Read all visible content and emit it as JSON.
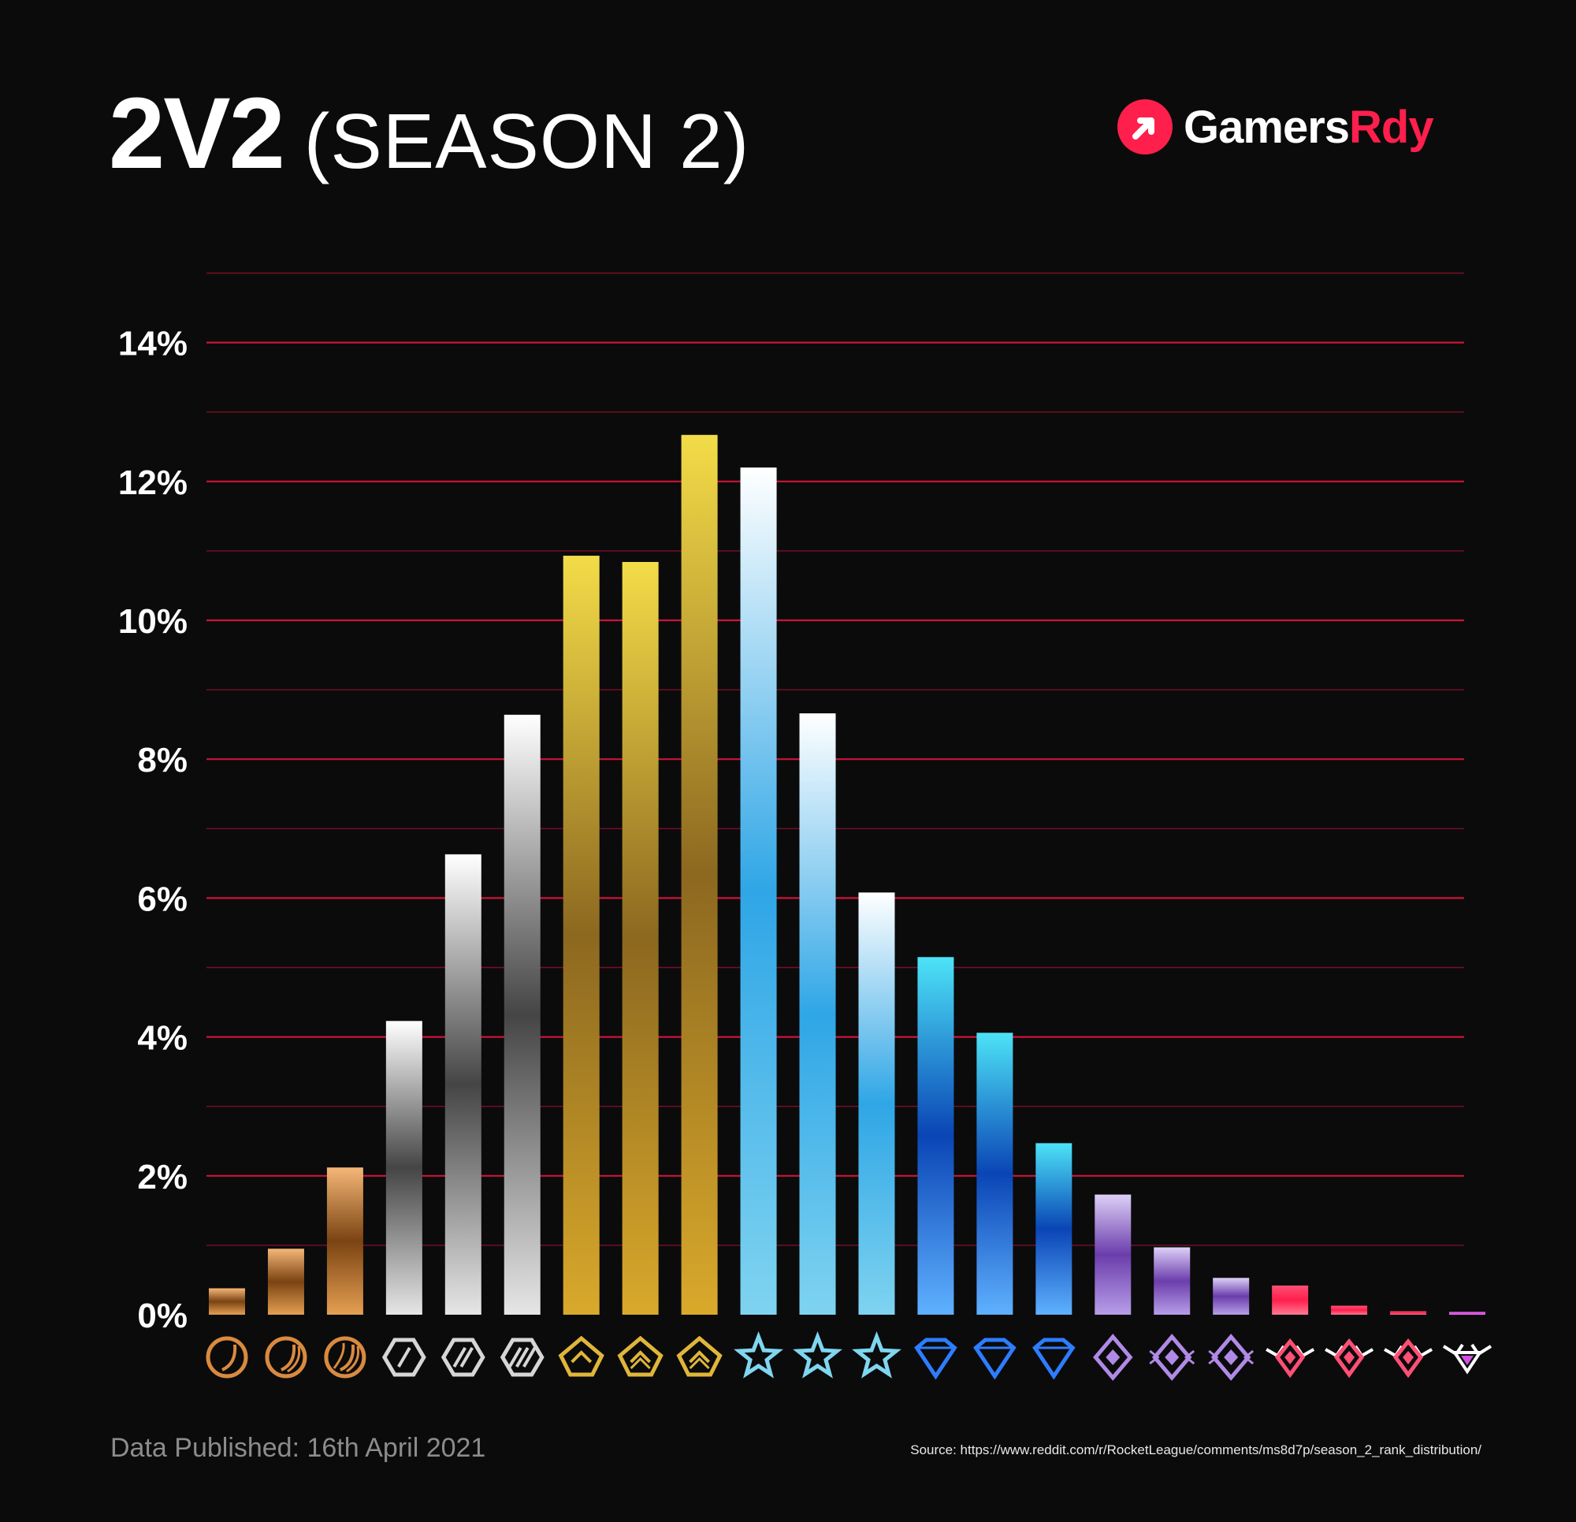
{
  "header": {
    "title_main": "2V2",
    "title_sub": "(SEASON 2)"
  },
  "brand": {
    "name_white": "Gamers",
    "name_red": "Rdy",
    "color": "#ff1f4c"
  },
  "footer": {
    "published": "Data Published: 16th April 2021",
    "source": "Source: https://www.reddit.com/r/RocketLeague/comments/ms8d7p/season_2_rank_distribution/"
  },
  "chart_data": {
    "type": "bar",
    "title": "2V2 (SEASON 2)",
    "xlabel": "",
    "ylabel": "",
    "ylim": [
      0,
      15
    ],
    "yticks": [
      0,
      2,
      4,
      6,
      8,
      10,
      12,
      14
    ],
    "ytick_labels": [
      "0%",
      "2%",
      "4%",
      "6%",
      "8%",
      "10%",
      "12%",
      "14%"
    ],
    "grid": true,
    "grid_color": "#d8143a",
    "categories_icons": [
      "bronze-1-icon",
      "bronze-2-icon",
      "bronze-3-icon",
      "silver-1-icon",
      "silver-2-icon",
      "silver-3-icon",
      "gold-1-icon",
      "gold-2-icon",
      "gold-3-icon",
      "platinum-1-icon",
      "platinum-2-icon",
      "platinum-3-icon",
      "diamond-1-icon",
      "diamond-2-icon",
      "diamond-3-icon",
      "champion-1-icon",
      "champion-2-icon",
      "champion-3-icon",
      "grand-champion-1-icon",
      "grand-champion-2-icon",
      "grand-champion-3-icon",
      "supersonic-legend-icon"
    ],
    "values": [
      0.38,
      0.95,
      2.12,
      4.23,
      6.63,
      8.64,
      10.93,
      10.84,
      12.67,
      12.2,
      8.66,
      6.08,
      5.15,
      4.06,
      2.47,
      1.73,
      0.97,
      0.53,
      0.42,
      0.13,
      0.05,
      0.04
    ],
    "bar_colors": [
      [
        "#f5b777",
        "#7a4312",
        "#e59f52"
      ],
      [
        "#f5b777",
        "#7a4312",
        "#e59f52"
      ],
      [
        "#f5b777",
        "#7a4312",
        "#e59f52"
      ],
      [
        "#ffffff",
        "#454545",
        "#e6e6e6"
      ],
      [
        "#ffffff",
        "#454545",
        "#e6e6e6"
      ],
      [
        "#ffffff",
        "#454545",
        "#e6e6e6"
      ],
      [
        "#f3dc48",
        "#8c6820",
        "#d9a92b"
      ],
      [
        "#f3dc48",
        "#8c6820",
        "#d9a92b"
      ],
      [
        "#f3dc48",
        "#8c6820",
        "#d9a92b"
      ],
      [
        "#ffffff",
        "#2fa6e6",
        "#7fd3f0"
      ],
      [
        "#ffffff",
        "#2fa6e6",
        "#7fd3f0"
      ],
      [
        "#ffffff",
        "#2fa6e6",
        "#7fd3f0"
      ],
      [
        "#4de3f7",
        "#0a45b5",
        "#5fb1ff"
      ],
      [
        "#4de3f7",
        "#0a45b5",
        "#5fb1ff"
      ],
      [
        "#4de3f7",
        "#0a45b5",
        "#5fb1ff"
      ],
      [
        "#ddd0f7",
        "#6b3dac",
        "#b79ee8"
      ],
      [
        "#ddd0f7",
        "#6b3dac",
        "#b79ee8"
      ],
      [
        "#ddd0f7",
        "#6b3dac",
        "#b79ee8"
      ],
      [
        "#ff4f74",
        "#ff1f4c",
        "#ff7a93"
      ],
      [
        "#ff4f74",
        "#ff1f4c",
        "#ff7a93"
      ],
      [
        "#ff4f74",
        "#ff1f4c",
        "#ff7a93"
      ],
      [
        "#ff80ff",
        "#cc3fd9",
        "#ff80ff"
      ]
    ],
    "icon_colors": [
      "#d98a3f",
      "#d98a3f",
      "#d98a3f",
      "#d6d6d6",
      "#d6d6d6",
      "#d6d6d6",
      "#e0b63a",
      "#e0b63a",
      "#e0b63a",
      "#7fd6ef",
      "#7fd6ef",
      "#7fd6ef",
      "#2e7dff",
      "#2e7dff",
      "#2e7dff",
      "#b08ae6",
      "#b08ae6",
      "#b08ae6",
      "#ff4f74",
      "#ff4f74",
      "#ff4f74",
      "#d24fe0"
    ]
  }
}
